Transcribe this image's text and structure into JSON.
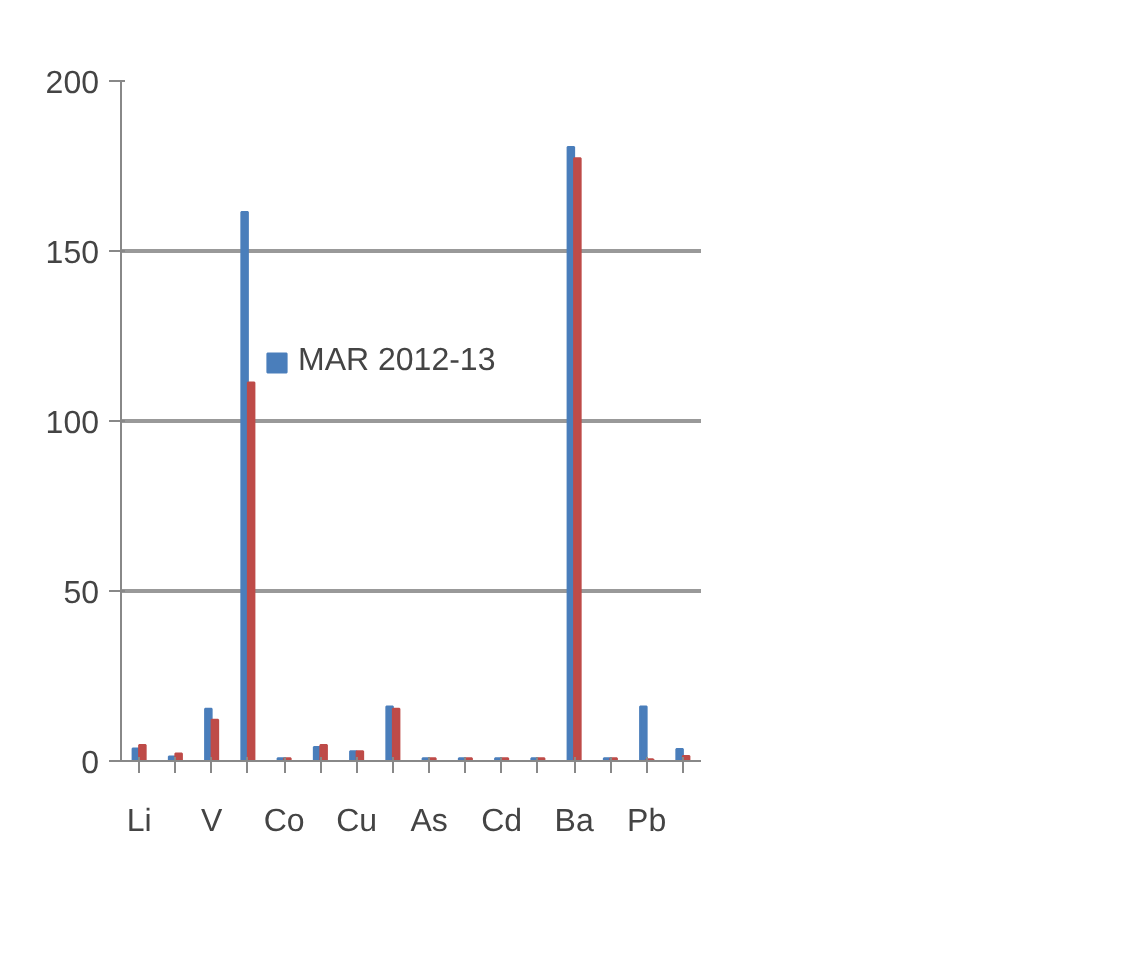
{
  "chart_data": {
    "type": "bar",
    "categories": [
      "Li",
      null,
      "V",
      null,
      "Co",
      null,
      "Cu",
      null,
      "As",
      null,
      "Cd",
      null,
      "Ba",
      null,
      "Pb",
      null
    ],
    "series": [
      {
        "name": "MAR 2012-13",
        "color": "#4a7ebb",
        "values": [
          3.7,
          1.3,
          15.4,
          161.5,
          0.8,
          4.1,
          2.9,
          16,
          0.8,
          0.8,
          0.8,
          0.8,
          180.6,
          0.8,
          16,
          3.5
        ]
      },
      {
        "color": "#be4b48",
        "values": [
          4.7,
          2.2,
          12.1,
          111.3,
          0.8,
          4.7,
          2.9,
          15.4,
          0.8,
          0.8,
          0.8,
          0.8,
          177.3,
          0.8,
          0.5,
          1.5
        ]
      }
    ],
    "ylim": [
      0,
      200
    ],
    "yticks": [
      0,
      50,
      100,
      150,
      200
    ],
    "grid": "y",
    "legend": "top left"
  }
}
